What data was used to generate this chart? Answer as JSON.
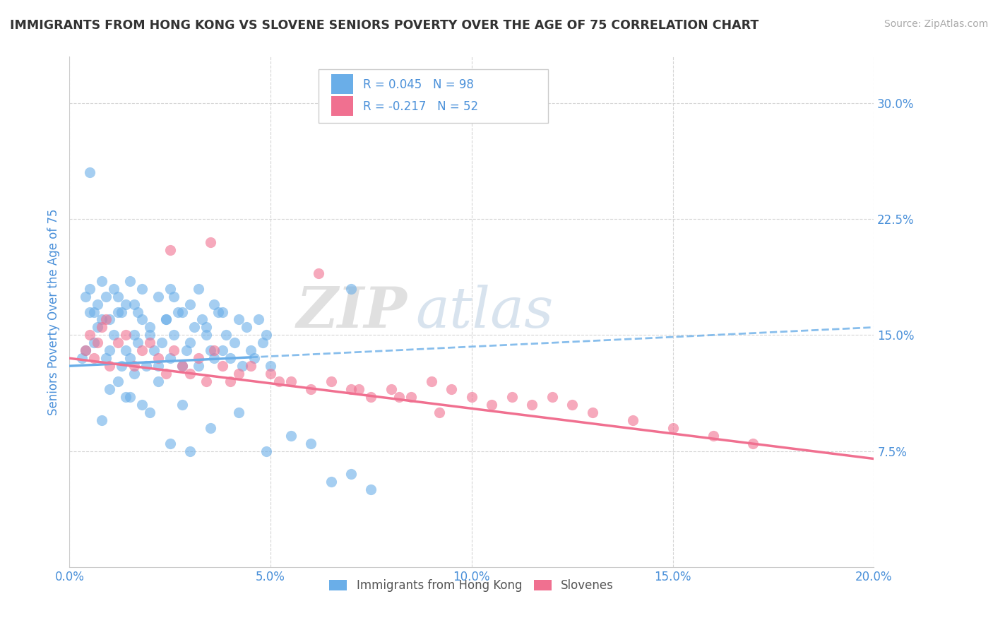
{
  "title": "IMMIGRANTS FROM HONG KONG VS SLOVENE SENIORS POVERTY OVER THE AGE OF 75 CORRELATION CHART",
  "source": "Source: ZipAtlas.com",
  "ylabel": "Seniors Poverty Over the Age of 75",
  "x_tick_labels": [
    "0.0%",
    "5.0%",
    "10.0%",
    "15.0%",
    "20.0%"
  ],
  "x_ticks": [
    0.0,
    5.0,
    10.0,
    15.0,
    20.0
  ],
  "y_tick_labels": [
    "7.5%",
    "15.0%",
    "22.5%",
    "30.0%"
  ],
  "y_ticks": [
    7.5,
    15.0,
    22.5,
    30.0
  ],
  "xlim": [
    0.0,
    20.0
  ],
  "ylim": [
    0.0,
    33.0
  ],
  "legend_label_1": "Immigrants from Hong Kong",
  "legend_label_2": "Slovenes",
  "R1": 0.045,
  "N1": 98,
  "R2": -0.217,
  "N2": 52,
  "color_hk": "#6aaee8",
  "color_sl": "#f07090",
  "color_text": "#4a90d9",
  "background_color": "#ffffff",
  "watermark_zip": "ZIP",
  "watermark_atlas": "atlas",
  "hk_trendline_x0": 0.0,
  "hk_trendline_y0": 13.0,
  "hk_trendline_x1": 20.0,
  "hk_trendline_y1": 15.5,
  "sl_trendline_x0": 0.0,
  "sl_trendline_y0": 13.5,
  "sl_trendline_x1": 20.0,
  "sl_trendline_y1": 7.0,
  "hk_solid_end_x": 4.5,
  "hk_x": [
    0.3,
    0.4,
    0.5,
    0.6,
    0.7,
    0.8,
    0.9,
    1.0,
    1.1,
    1.2,
    1.3,
    1.4,
    1.5,
    1.6,
    1.7,
    1.8,
    1.9,
    2.0,
    2.1,
    2.2,
    2.3,
    2.4,
    2.5,
    2.6,
    2.7,
    2.8,
    2.9,
    3.0,
    3.1,
    3.2,
    3.3,
    3.4,
    3.5,
    3.6,
    3.7,
    3.8,
    3.9,
    4.0,
    4.1,
    4.2,
    4.3,
    4.4,
    4.5,
    4.6,
    4.7,
    4.8,
    4.9,
    5.0,
    0.4,
    0.5,
    0.6,
    0.7,
    0.8,
    0.9,
    1.0,
    1.1,
    1.2,
    1.3,
    1.4,
    1.5,
    1.6,
    1.7,
    1.8,
    2.0,
    2.2,
    2.4,
    2.5,
    2.6,
    2.8,
    3.0,
    3.2,
    3.4,
    3.6,
    3.8,
    1.0,
    1.2,
    1.4,
    1.6,
    0.5,
    1.8,
    2.0,
    2.5,
    3.0,
    7.0,
    0.8,
    1.5,
    2.2,
    2.8,
    3.5,
    4.2,
    4.9,
    5.5,
    6.0,
    6.5,
    7.0,
    7.5
  ],
  "hk_y": [
    13.5,
    14.0,
    16.5,
    14.5,
    15.5,
    16.0,
    13.5,
    14.0,
    15.0,
    16.5,
    13.0,
    14.0,
    13.5,
    15.0,
    14.5,
    16.0,
    13.0,
    15.5,
    14.0,
    13.0,
    14.5,
    16.0,
    13.5,
    15.0,
    16.5,
    13.0,
    14.0,
    14.5,
    15.5,
    13.0,
    16.0,
    15.0,
    14.0,
    13.5,
    16.5,
    14.0,
    15.0,
    13.5,
    14.5,
    16.0,
    13.0,
    15.5,
    14.0,
    13.5,
    16.0,
    14.5,
    15.0,
    13.0,
    17.5,
    18.0,
    16.5,
    17.0,
    18.5,
    17.5,
    16.0,
    18.0,
    17.5,
    16.5,
    17.0,
    18.5,
    17.0,
    16.5,
    18.0,
    15.0,
    17.5,
    16.0,
    18.0,
    17.5,
    16.5,
    17.0,
    18.0,
    15.5,
    17.0,
    16.5,
    11.5,
    12.0,
    11.0,
    12.5,
    25.5,
    10.5,
    10.0,
    8.0,
    7.5,
    18.0,
    9.5,
    11.0,
    12.0,
    10.5,
    9.0,
    10.0,
    7.5,
    8.5,
    8.0,
    5.5,
    6.0,
    5.0
  ],
  "sl_x": [
    0.4,
    0.5,
    0.6,
    0.7,
    0.8,
    0.9,
    1.0,
    1.2,
    1.4,
    1.6,
    1.8,
    2.0,
    2.2,
    2.4,
    2.6,
    2.8,
    3.0,
    3.2,
    3.4,
    3.6,
    3.8,
    4.0,
    4.5,
    5.0,
    5.5,
    6.0,
    6.5,
    7.0,
    7.5,
    8.0,
    8.5,
    9.0,
    9.5,
    10.0,
    10.5,
    11.0,
    11.5,
    12.0,
    12.5,
    13.0,
    14.0,
    15.0,
    16.0,
    17.0,
    2.5,
    3.5,
    4.2,
    5.2,
    6.2,
    7.2,
    8.2,
    9.2
  ],
  "sl_y": [
    14.0,
    15.0,
    13.5,
    14.5,
    15.5,
    16.0,
    13.0,
    14.5,
    15.0,
    13.0,
    14.0,
    14.5,
    13.5,
    12.5,
    14.0,
    13.0,
    12.5,
    13.5,
    12.0,
    14.0,
    13.0,
    12.0,
    13.0,
    12.5,
    12.0,
    11.5,
    12.0,
    11.5,
    11.0,
    11.5,
    11.0,
    12.0,
    11.5,
    11.0,
    10.5,
    11.0,
    10.5,
    11.0,
    10.5,
    10.0,
    9.5,
    9.0,
    8.5,
    8.0,
    20.5,
    21.0,
    12.5,
    12.0,
    19.0,
    11.5,
    11.0,
    10.0
  ]
}
